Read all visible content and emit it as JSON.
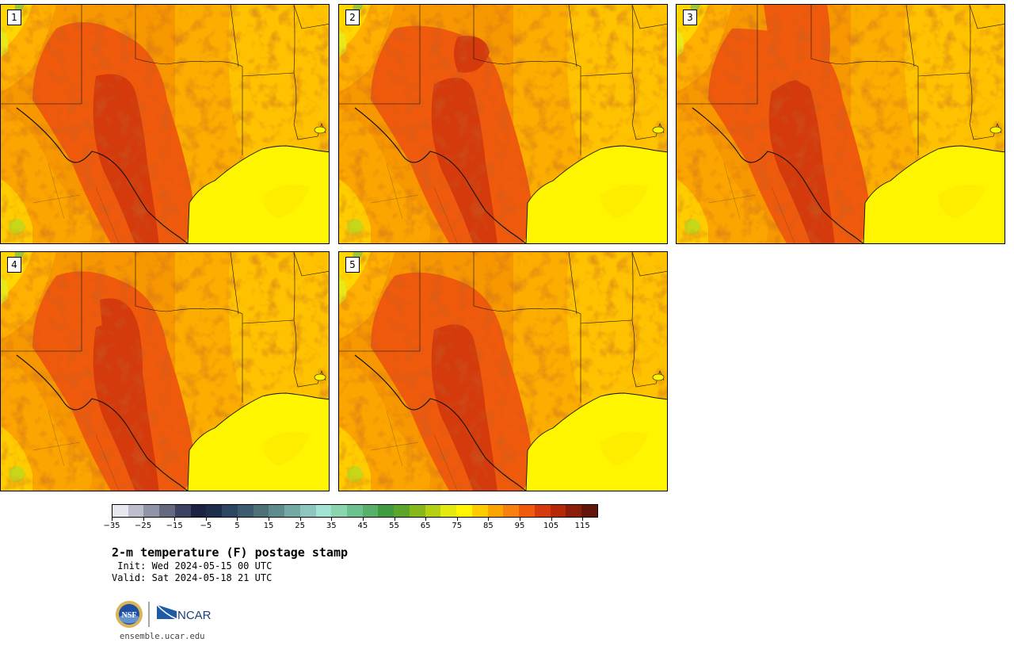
{
  "panels": [
    {
      "label": "1"
    },
    {
      "label": "2"
    },
    {
      "label": "3"
    },
    {
      "label": "4"
    },
    {
      "label": "5"
    }
  ],
  "colorbar": {
    "colors": [
      "#e6e8ee",
      "#bdbecc",
      "#9094a6",
      "#65697f",
      "#3c4260",
      "#1c2340",
      "#1e2d4a",
      "#2c4560",
      "#3c5b6e",
      "#4c7278",
      "#5e8c8c",
      "#74a8a2",
      "#8dc6bc",
      "#a1e3d3",
      "#8ad4b0",
      "#6cc28e",
      "#56b06c",
      "#3f9a40",
      "#5aa52a",
      "#86b81c",
      "#b4d014",
      "#e2ea10",
      "#fff500",
      "#ffcc00",
      "#fca500",
      "#f78010",
      "#ef5a0c",
      "#d43a0c",
      "#b42808",
      "#8a1e08",
      "#621508"
    ],
    "tick_labels": [
      "−35",
      "−25",
      "−15",
      "−5",
      "5",
      "15",
      "25",
      "35",
      "45",
      "55",
      "65",
      "75",
      "85",
      "95",
      "105",
      "115"
    ]
  },
  "title": "2-m temperature (F) postage stamp",
  "init": " Init: Wed 2024-05-15 00 UTC",
  "valid": "Valid: Sat 2024-05-18 21 UTC",
  "logos": {
    "nsf": "NSF",
    "ncar": "NCAR"
  },
  "url": "ensemble.ucar.edu"
}
